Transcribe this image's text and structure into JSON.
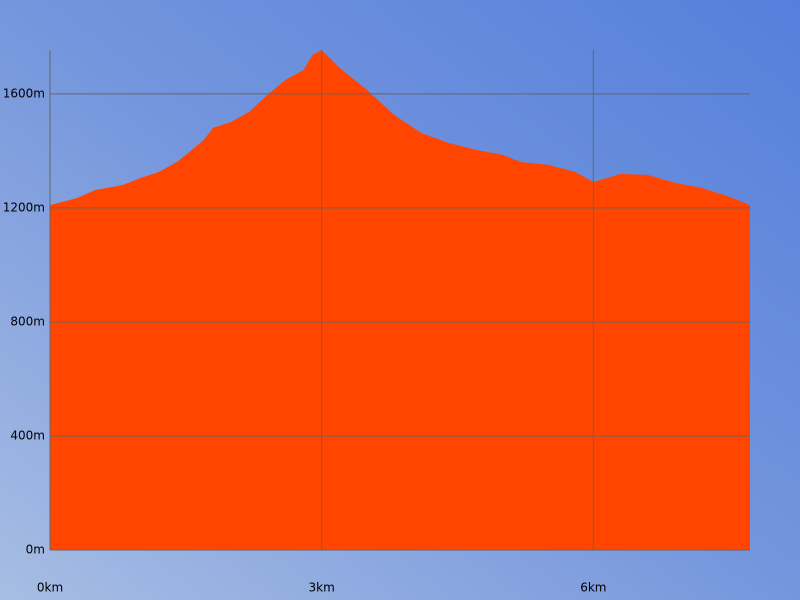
{
  "chart_data": {
    "type": "area",
    "color": "#ff4500",
    "grid": true,
    "x": [
      0,
      0.3,
      0.5,
      0.8,
      1.0,
      1.2,
      1.4,
      1.5,
      1.7,
      1.8,
      2.0,
      2.2,
      2.4,
      2.6,
      2.8,
      2.9,
      3.0,
      3.2,
      3.5,
      3.8,
      4.1,
      4.4,
      4.7,
      5.0,
      5.2,
      5.5,
      5.8,
      6.0,
      6.3,
      6.6,
      6.9,
      7.2,
      7.5,
      7.73
    ],
    "values": [
      1210,
      1235,
      1263,
      1280,
      1305,
      1326,
      1361,
      1386,
      1439,
      1481,
      1502,
      1537,
      1596,
      1649,
      1684,
      1737,
      1754,
      1691,
      1614,
      1526,
      1463,
      1428,
      1404,
      1386,
      1361,
      1351,
      1326,
      1291,
      1319,
      1316,
      1288,
      1270,
      1239,
      1210
    ],
    "xlim": [
      0,
      7.73
    ],
    "ylim": [
      0,
      1754
    ],
    "xticks": [
      {
        "value": 0,
        "label": "0km"
      },
      {
        "value": 3,
        "label": "3km"
      },
      {
        "value": 6,
        "label": "6km"
      }
    ],
    "yticks": [
      {
        "value": 0,
        "label": "0m"
      },
      {
        "value": 400,
        "label": "400m"
      },
      {
        "value": 800,
        "label": "800m"
      },
      {
        "value": 1200,
        "label": "1200m"
      },
      {
        "value": 1600,
        "label": "1600m"
      }
    ]
  }
}
